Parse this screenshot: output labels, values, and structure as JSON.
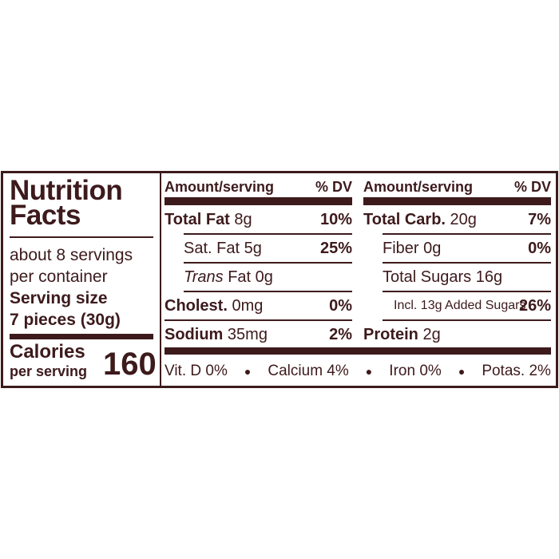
{
  "label": {
    "title": "Nutrition Facts",
    "servings": [
      "about 8 servings",
      "per container"
    ],
    "serving_size_label": "Serving size",
    "serving_size_value": "7 pieces (30g)",
    "calories_label": "Calories",
    "calories_sub": "per serving",
    "calories": "160",
    "columns": [
      {
        "header_amount": "Amount/serving",
        "header_dv": "% DV",
        "rows": [
          {
            "name": "Total Fat",
            "amount": "8g",
            "dv": "10%"
          },
          {
            "name": "Sat. Fat",
            "amount": "5g",
            "dv": "25%"
          },
          {
            "name_italic": "Trans",
            "name": "Fat",
            "amount": "0g"
          },
          {
            "name": "Cholest.",
            "amount": "0mg",
            "dv": "0%"
          },
          {
            "name": "Sodium",
            "amount": "35mg",
            "dv": "2%"
          }
        ]
      },
      {
        "header_amount": "Amount/serving",
        "header_dv": "% DV",
        "rows": [
          {
            "name": "Total Carb.",
            "amount": "20g",
            "dv": "7%"
          },
          {
            "name": "Fiber",
            "amount": "0g",
            "dv": "0%"
          },
          {
            "name": "Total Sugars",
            "amount": "16g"
          },
          {
            "name": "Incl. 13g Added Sugars",
            "dv": "26%"
          },
          {
            "name": "Protein",
            "amount": "2g"
          }
        ]
      }
    ],
    "footer": [
      "Vit. D 0%",
      "Calcium 4%",
      "Iron 0%",
      "Potas. 2%"
    ]
  }
}
